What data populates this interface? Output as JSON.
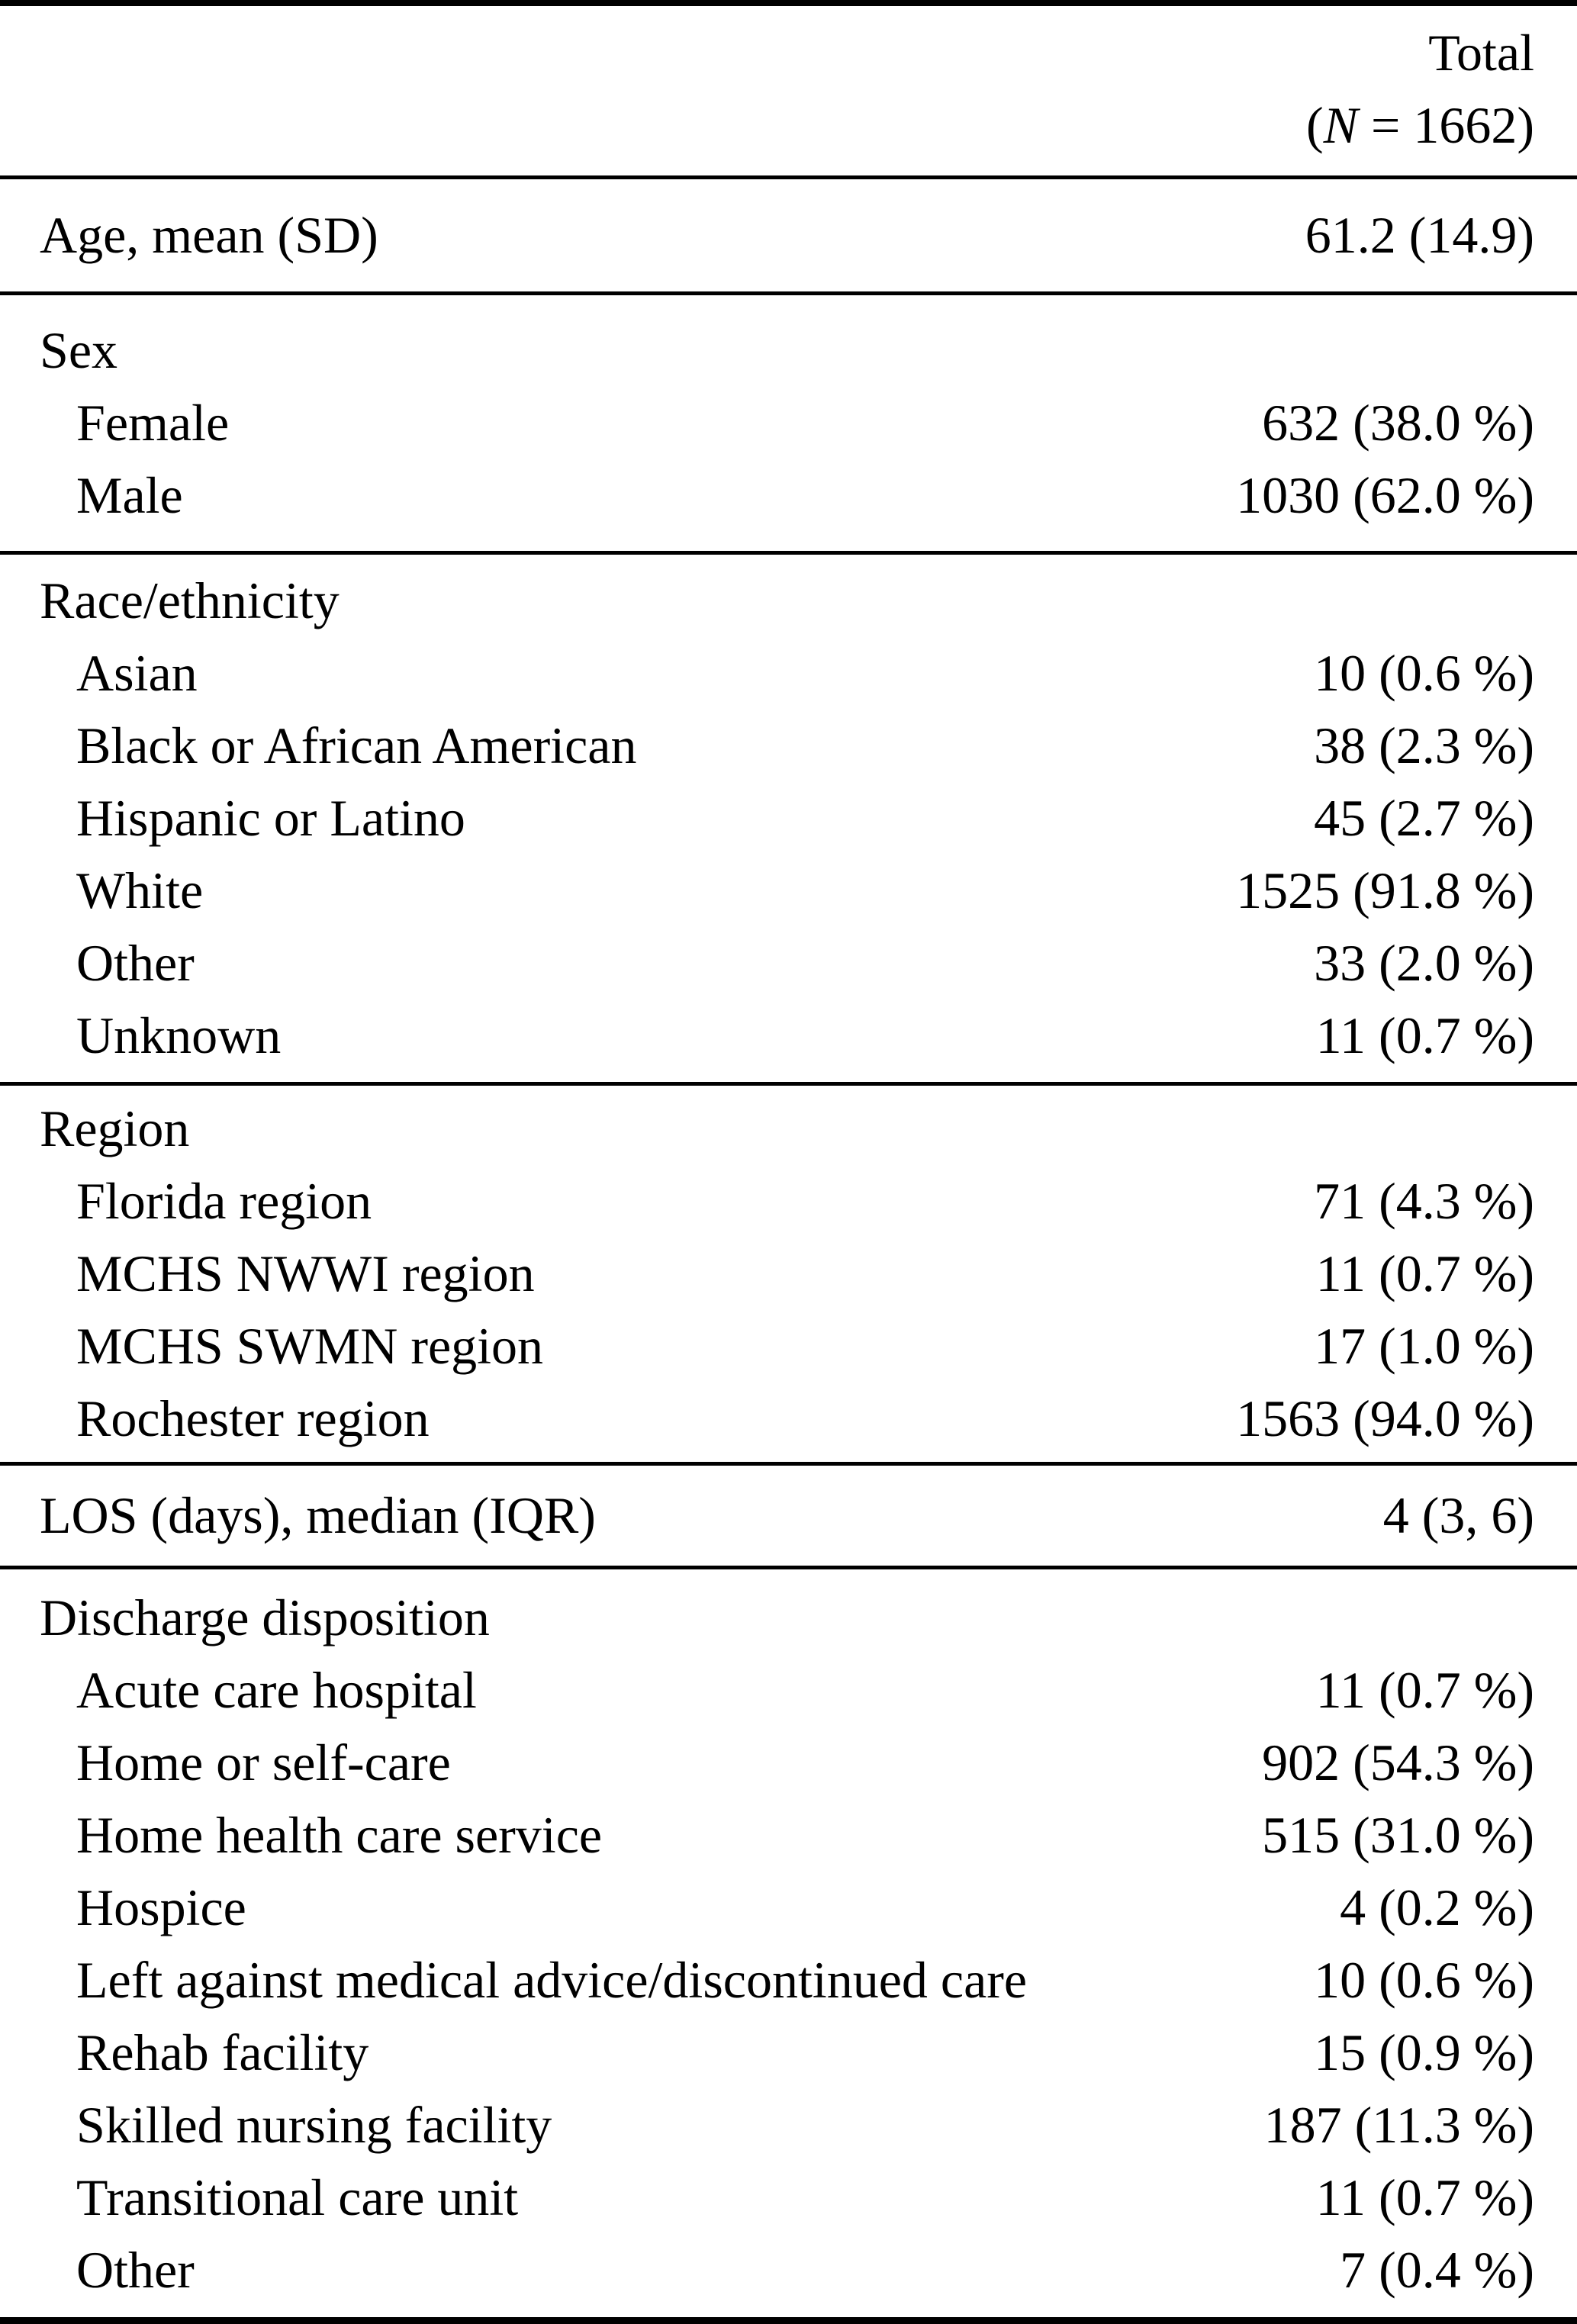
{
  "colors": {
    "text": "#000000",
    "background": "#ffffff",
    "rule": "#000000"
  },
  "table": {
    "header": {
      "total_label": "Total",
      "n_open": "(",
      "n_symbol": "N",
      "n_rest": " = 1662)"
    },
    "sections": [
      {
        "rows": [
          {
            "label": "Age, mean (SD)",
            "value": "61.2 (14.9)",
            "indent": false
          }
        ]
      },
      {
        "rows": [
          {
            "label": "Sex",
            "value": "",
            "indent": false
          },
          {
            "label": "Female",
            "value": "632 (38.0 %)",
            "indent": true
          },
          {
            "label": "Male",
            "value": "1030 (62.0 %)",
            "indent": true
          }
        ]
      },
      {
        "rows": [
          {
            "label": "Race/ethnicity",
            "value": "",
            "indent": false
          },
          {
            "label": "Asian",
            "value": "10 (0.6 %)",
            "indent": true
          },
          {
            "label": "Black or African American",
            "value": "38 (2.3 %)",
            "indent": true
          },
          {
            "label": "Hispanic or Latino",
            "value": "45 (2.7 %)",
            "indent": true
          },
          {
            "label": "White",
            "value": "1525 (91.8 %)",
            "indent": true
          },
          {
            "label": "Other",
            "value": "33 (2.0 %)",
            "indent": true
          },
          {
            "label": "Unknown",
            "value": "11 (0.7 %)",
            "indent": true
          }
        ]
      },
      {
        "rows": [
          {
            "label": "Region",
            "value": "",
            "indent": false
          },
          {
            "label": "Florida region",
            "value": "71 (4.3 %)",
            "indent": true
          },
          {
            "label": "MCHS NWWI region",
            "value": "11 (0.7 %)",
            "indent": true
          },
          {
            "label": "MCHS SWMN region",
            "value": "17 (1.0 %)",
            "indent": true
          },
          {
            "label": "Rochester region",
            "value": "1563 (94.0 %)",
            "indent": true
          }
        ]
      },
      {
        "rows": [
          {
            "label": "LOS (days), median (IQR)",
            "value": "4 (3, 6)",
            "indent": false
          }
        ]
      },
      {
        "rows": [
          {
            "label": "Discharge disposition",
            "value": "",
            "indent": false
          },
          {
            "label": "Acute care hospital",
            "value": "11 (0.7 %)",
            "indent": true
          },
          {
            "label": "Home or self-care",
            "value": "902 (54.3 %)",
            "indent": true
          },
          {
            "label": "Home health care service",
            "value": "515 (31.0 %)",
            "indent": true
          },
          {
            "label": "Hospice",
            "value": "4 (0.2 %)",
            "indent": true
          },
          {
            "label": "Left against medical advice/discontinued care",
            "value": "10 (0.6 %)",
            "indent": true
          },
          {
            "label": "Rehab facility",
            "value": "15 (0.9 %)",
            "indent": true
          },
          {
            "label": "Skilled nursing facility",
            "value": "187 (11.3 %)",
            "indent": true
          },
          {
            "label": "Transitional care unit",
            "value": "11 (0.7 %)",
            "indent": true
          },
          {
            "label": "Other",
            "value": "7 (0.4 %)",
            "indent": true
          }
        ]
      }
    ]
  }
}
